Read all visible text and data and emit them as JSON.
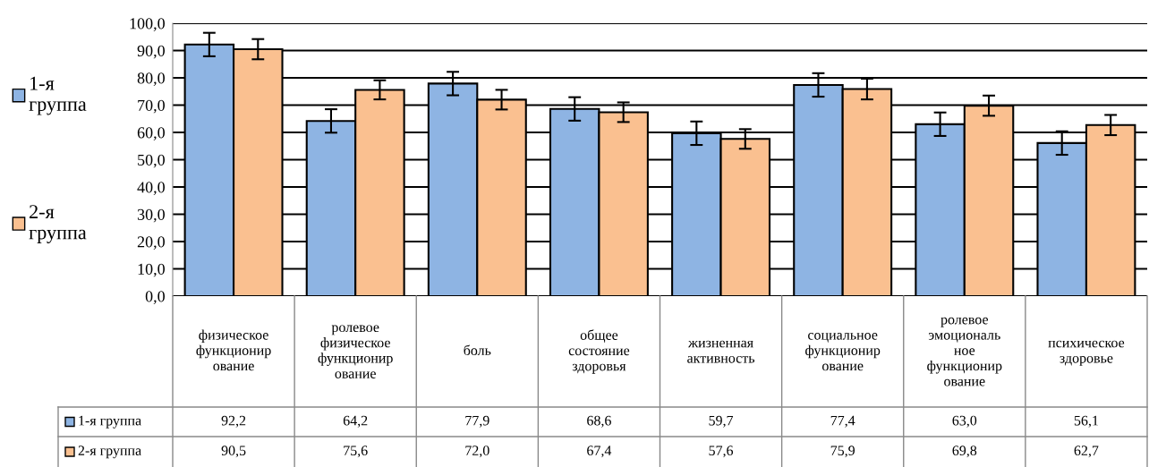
{
  "chart_data": {
    "type": "bar",
    "categories": [
      "физическое функционирование",
      "ролевое физическое функционирование",
      "боль",
      "общее состояние здоровья",
      "жизненная активность",
      "социальное функционирование",
      "ролевое эмоциональное функционирование",
      "психическое здоровье"
    ],
    "series": [
      {
        "name": "1-я группа",
        "color": "#8eb4e3",
        "values": [
          92.2,
          64.2,
          77.9,
          68.6,
          59.7,
          77.4,
          63.0,
          56.1
        ],
        "errors": [
          4.3,
          4.3,
          4.3,
          4.3,
          4.3,
          4.3,
          4.3,
          4.3
        ],
        "value_labels": [
          "92,2",
          "64,2",
          "77,9",
          "68,6",
          "59,7",
          "77,4",
          "63,0",
          "56,1"
        ]
      },
      {
        "name": "2-я группа",
        "color": "#fac090",
        "values": [
          90.5,
          75.6,
          72.0,
          67.4,
          57.6,
          75.9,
          69.8,
          62.7
        ],
        "errors": [
          3.7,
          3.5,
          3.6,
          3.6,
          3.6,
          3.8,
          3.7,
          3.7
        ],
        "value_labels": [
          "90,5",
          "75,6",
          "72,0",
          "67,4",
          "57,6",
          "75,9",
          "69,8",
          "62,7"
        ]
      }
    ],
    "ylim": [
      0,
      100
    ],
    "yticks": [
      {
        "value": 0,
        "label": "0,0"
      },
      {
        "value": 10,
        "label": "10,0"
      },
      {
        "value": 20,
        "label": "20,0"
      },
      {
        "value": 30,
        "label": "30,0"
      },
      {
        "value": 40,
        "label": "40,0"
      },
      {
        "value": 50,
        "label": "50,0"
      },
      {
        "value": 60,
        "label": "60,0"
      },
      {
        "value": 70,
        "label": "70,0"
      },
      {
        "value": 80,
        "label": "80,0"
      },
      {
        "value": 90,
        "label": "90,0"
      },
      {
        "value": 100,
        "label": "100,0"
      }
    ],
    "grid": "y",
    "legend": "left"
  }
}
